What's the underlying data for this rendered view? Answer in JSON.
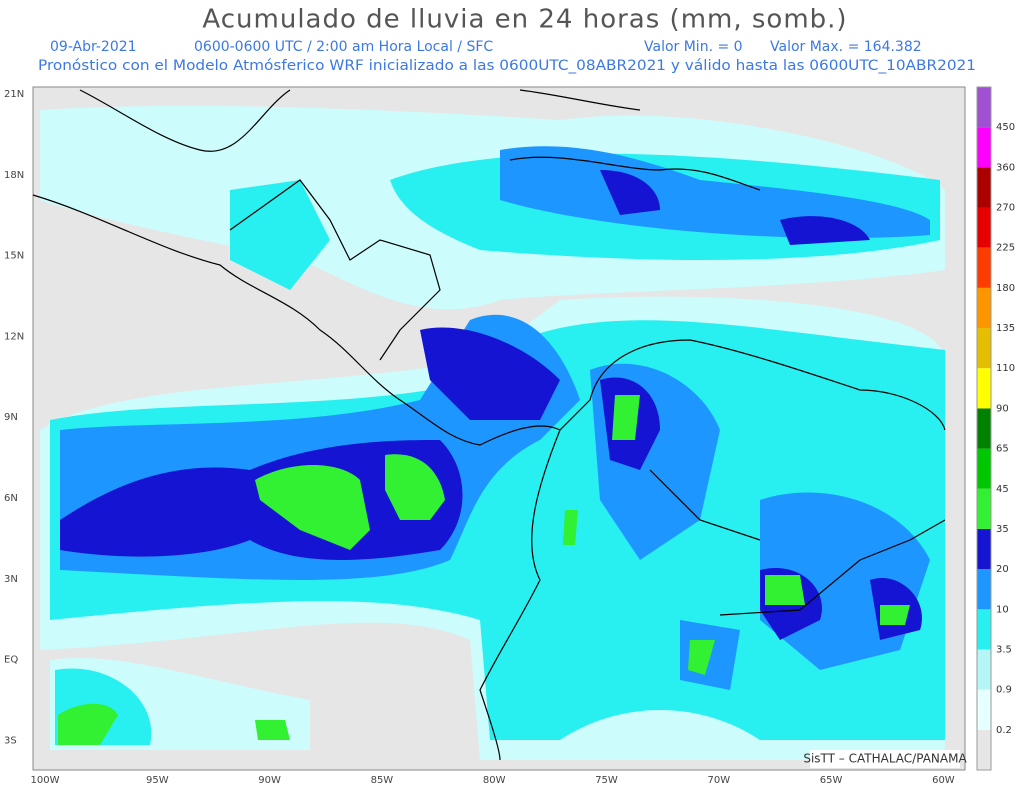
{
  "header": {
    "title": "Acumulado de lluvia en 24 horas (mm, somb.)",
    "date": "09-Abr-2021",
    "period": "0600-0600 UTC / 2:00 am Hora Local / SFC",
    "min": "Valor Min. = 0",
    "max": "Valor Max. = 164.382",
    "note": "Pronóstico con el Modelo Atmósferico WRF inicializado a las 0600UTC_08ABR2021 y válido hasta las  0600UTC_10ABR2021"
  },
  "map": {
    "lat_labels": [
      "21N",
      "18N",
      "15N",
      "12N",
      "9N",
      "6N",
      "3N",
      "EQ",
      "3S"
    ],
    "lon_labels": [
      "100W",
      "95W",
      "90W",
      "85W",
      "80W",
      "75W",
      "70W",
      "65W",
      "60W"
    ],
    "credit": "SisTT – CATHALAC/PANAMA"
  },
  "legend": {
    "labels": [
      "0.2",
      "0.9",
      "3.5",
      "10",
      "20",
      "35",
      "45",
      "65",
      "90",
      "110",
      "135",
      "180",
      "225",
      "270",
      "360",
      "450"
    ],
    "colors": [
      "#e6e6e6",
      "#e6ffff",
      "#b4f5f5",
      "#28f0f0",
      "#1e96ff",
      "#1414d2",
      "#32f032",
      "#00c800",
      "#008200",
      "#ffff00",
      "#e6be00",
      "#ff9600",
      "#ff3c00",
      "#e60000",
      "#aa0000",
      "#ff00ff",
      "#a050d2"
    ]
  }
}
